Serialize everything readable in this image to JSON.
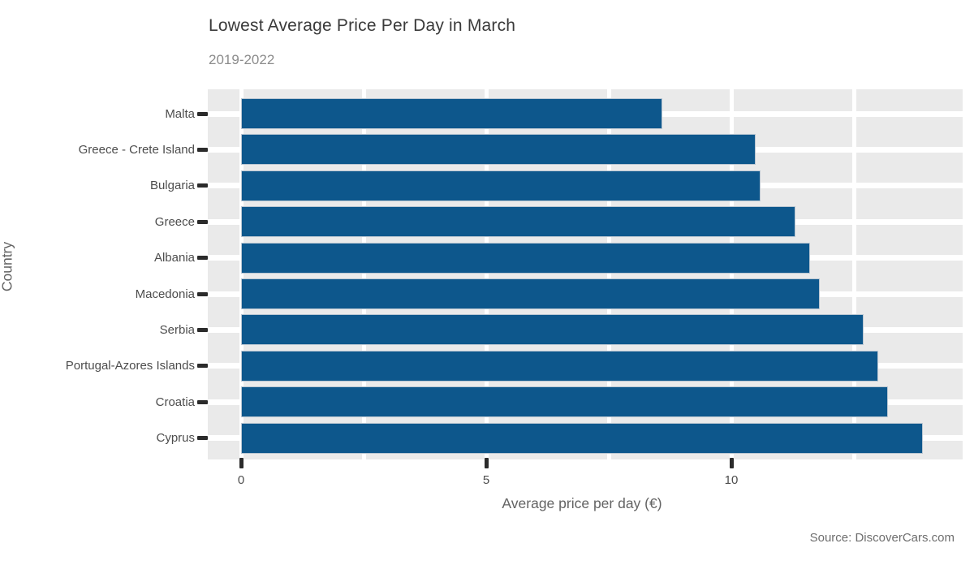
{
  "title": "Lowest Average Price Per Day in March",
  "subtitle": "2019-2022",
  "source_note": "Source: DiscoverCars.com",
  "chart_data": {
    "type": "bar",
    "orientation": "horizontal",
    "title": "Lowest Average Price Per Day in March",
    "subtitle": "2019-2022",
    "xlabel": "Average price per day (€)",
    "ylabel": "Country",
    "categories": [
      "Malta",
      "Greece - Crete Island",
      "Bulgaria",
      "Greece",
      "Albania",
      "Macedonia",
      "Serbia",
      "Portugal-Azores Islands",
      "Croatia",
      "Cyprus"
    ],
    "values": [
      8.6,
      10.5,
      10.6,
      11.3,
      11.6,
      11.8,
      12.7,
      13.0,
      13.2,
      13.9
    ],
    "x_ticks": [
      0,
      5,
      10
    ],
    "x_gridlines": [
      0,
      2.5,
      5,
      7.5,
      10,
      12.5
    ],
    "xlim": [
      0,
      14.7
    ],
    "grid": true,
    "legend": "none",
    "colors": {
      "bar_fill": "#0d578c",
      "bar_stroke": "#b9c6d2",
      "panel_background": "#eaeaea",
      "gridline": "#ffffff",
      "tick_mark": "#2b2b2b",
      "title_text": "#3a3a3a",
      "subtitle_text": "#8c8c8c",
      "axis_text": "#4d4d4d",
      "axis_title_text": "#636363",
      "source_text": "#6e6e6e"
    }
  }
}
